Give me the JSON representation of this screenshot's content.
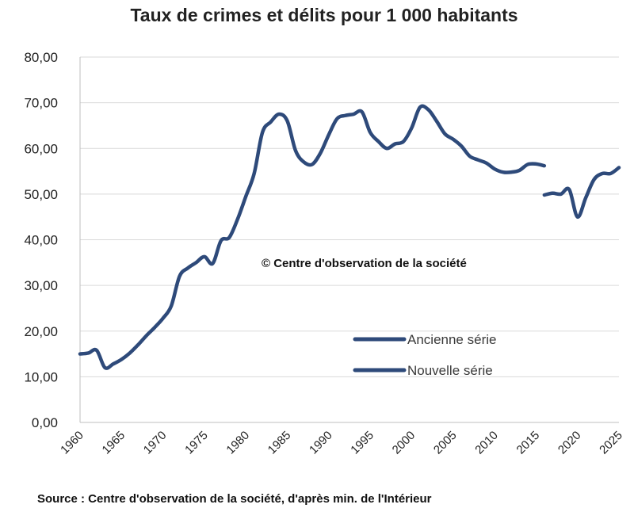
{
  "chart_data": {
    "type": "line",
    "title": "Taux de crimes et délits pour 1 000 habitants",
    "xlabel": "",
    "ylabel": "",
    "xlim": [
      1960,
      2025
    ],
    "ylim": [
      0,
      80
    ],
    "y_ticks": [
      0,
      10,
      20,
      30,
      40,
      50,
      60,
      70,
      80
    ],
    "y_tick_labels": [
      "0,00",
      "10,00",
      "20,00",
      "30,00",
      "40,00",
      "50,00",
      "60,00",
      "70,00",
      "80,00"
    ],
    "x_ticks": [
      1960,
      1965,
      1970,
      1975,
      1980,
      1985,
      1990,
      1995,
      2000,
      2005,
      2010,
      2015,
      2020,
      2025
    ],
    "x_tick_labels": [
      "1960",
      "1965",
      "1970",
      "1975",
      "1980",
      "1985",
      "1990",
      "1995",
      "2000",
      "2005",
      "2010",
      "2015",
      "2020",
      "2025"
    ],
    "grid": true,
    "color": "#2e4a7a",
    "legend_position": "center-right",
    "series": [
      {
        "name": "Ancienne série",
        "x": [
          1960,
          1961,
          1962,
          1963,
          1964,
          1965,
          1966,
          1967,
          1968,
          1969,
          1970,
          1971,
          1972,
          1973,
          1974,
          1975,
          1976,
          1977,
          1978,
          1979,
          1980,
          1981,
          1982,
          1983,
          1984,
          1985,
          1986,
          1987,
          1988,
          1989,
          1990,
          1991,
          1992,
          1993,
          1994,
          1995,
          1996,
          1997,
          1998,
          1999,
          2000,
          2001,
          2002,
          2003,
          2004,
          2005,
          2006,
          2007,
          2008,
          2009,
          2010,
          2011,
          2012,
          2013,
          2014,
          2015,
          2016
        ],
        "values": [
          15.0,
          15.2,
          15.8,
          12.0,
          12.8,
          13.8,
          15.2,
          17.0,
          19.0,
          20.8,
          22.8,
          25.5,
          32.0,
          33.8,
          35.0,
          36.3,
          34.8,
          39.8,
          40.5,
          44.5,
          49.5,
          54.5,
          63.5,
          65.8,
          67.5,
          66.0,
          59.5,
          57.0,
          56.5,
          59.0,
          63.0,
          66.5,
          67.2,
          67.5,
          68.0,
          63.5,
          61.5,
          60.0,
          61.0,
          61.5,
          64.5,
          69.0,
          68.5,
          66.0,
          63.2,
          62.0,
          60.5,
          58.3,
          57.5,
          56.8,
          55.5,
          54.8,
          54.8,
          55.2,
          56.5,
          56.6,
          56.2
        ]
      },
      {
        "name": "Nouvelle série",
        "x": [
          2016,
          2017,
          2018,
          2019,
          2020,
          2021,
          2022,
          2023,
          2024,
          2025
        ],
        "values": [
          49.8,
          50.2,
          50.0,
          51.0,
          45.0,
          49.2,
          53.2,
          54.5,
          54.5,
          55.8
        ]
      }
    ],
    "annotations": [
      "© Centre  d'observation de la société"
    ],
    "source": "Source : Centre d'observation de la société, d'après min. de l'Intérieur"
  }
}
